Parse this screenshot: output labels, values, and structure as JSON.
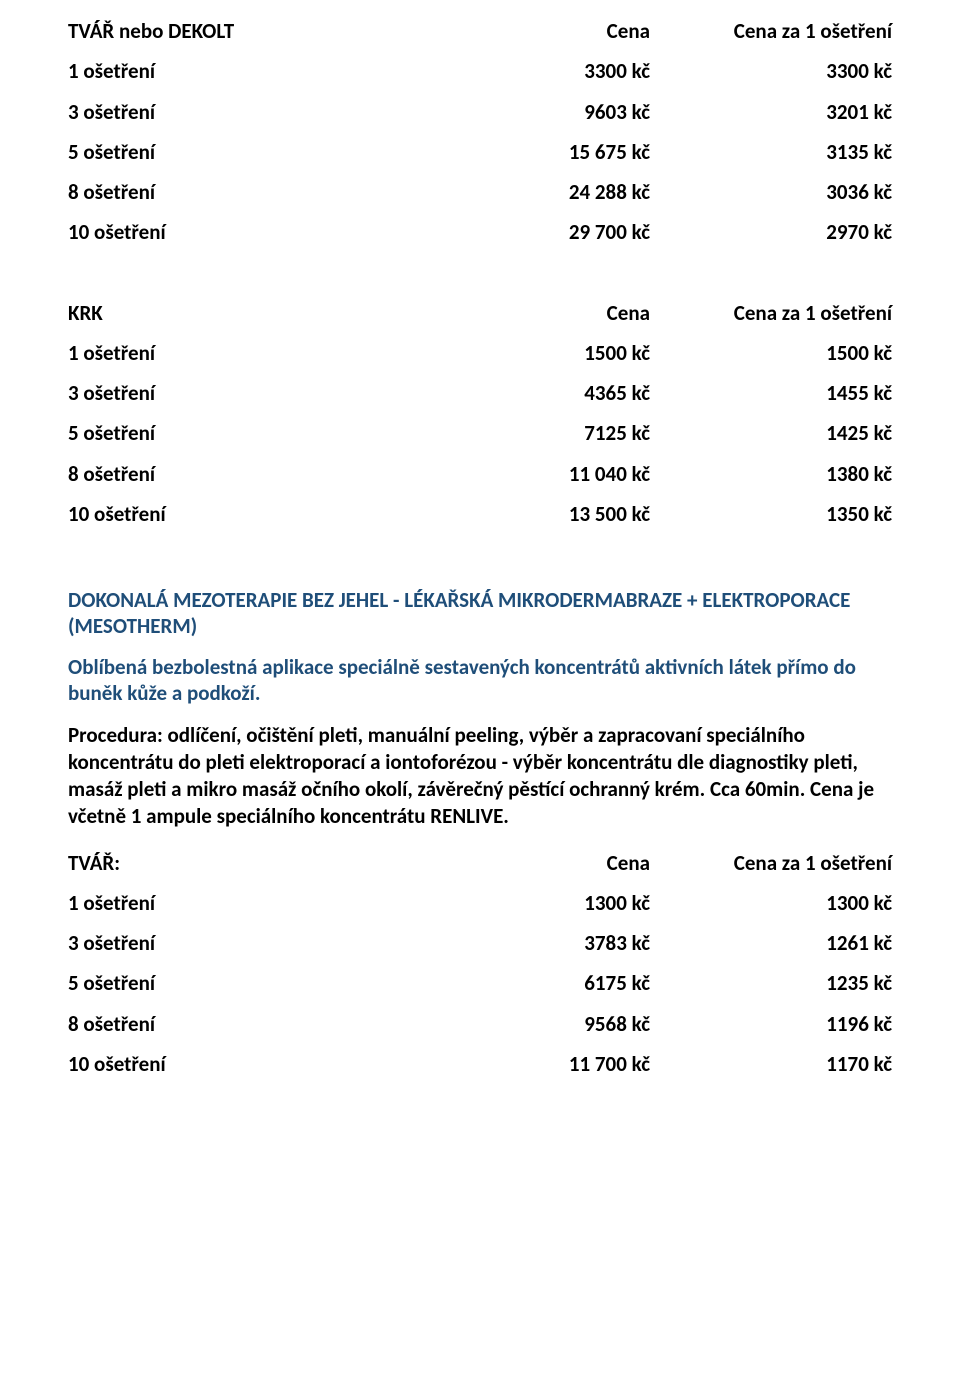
{
  "table1": {
    "header": {
      "c1": "TVÁŘ nebo DEKOLT",
      "c2": "Cena",
      "c3": "Cena za 1 ošetření"
    },
    "rows": [
      {
        "c1": "1 ošetření",
        "c2": "3300 kč",
        "c3": "3300 kč"
      },
      {
        "c1": "3 ošetření",
        "c2": "9603 kč",
        "c3": "3201 kč"
      },
      {
        "c1": "5 ošetření",
        "c2": "15 675 kč",
        "c3": "3135 kč"
      },
      {
        "c1": "8 ošetření",
        "c2": "24 288 kč",
        "c3": "3036 kč"
      },
      {
        "c1": "10 ošetření",
        "c2": "29 700 kč",
        "c3": "2970 kč"
      }
    ]
  },
  "table2": {
    "header": {
      "c1": "KRK",
      "c2": "Cena",
      "c3": "Cena za 1 ošetření"
    },
    "rows": [
      {
        "c1": "1 ošetření",
        "c2": "1500 kč",
        "c3": "1500 kč"
      },
      {
        "c1": "3 ošetření",
        "c2": "4365 kč",
        "c3": "1455 kč"
      },
      {
        "c1": "5 ošetření",
        "c2": "7125 kč",
        "c3": "1425 kč"
      },
      {
        "c1": "8 ošetření",
        "c2": "11 040 kč",
        "c3": "1380 kč"
      },
      {
        "c1": "10 ošetření",
        "c2": "13 500 kč",
        "c3": "1350 kč"
      }
    ]
  },
  "section_title": "DOKONALÁ MEZOTERAPIE BEZ JEHEL -  LÉKAŘSKÁ MIKRODERMABRAZE + ELEKTROPORACE (MESOTHERM)",
  "description": "Oblíbená bezbolestná aplikace speciálně sestavených koncentrátů aktivních látek přímo do buněk kůže a podkoží.",
  "procedure": "Procedura: odlíčení, očištění pleti, manuální peeling, výběr a zapracovaní speciálního koncentrátu do pleti elektroporací a iontoforézou - výběr koncentrátu dle diagnostiky pleti, masáž pleti a mikro masáž očního okolí, závěrečný pěstící ochranný krém. Cca 60min. Cena je včetně 1 ampule speciálního koncentrátu RENLIVE.",
  "table3": {
    "header": {
      "c1": "TVÁŘ:",
      "c2": "Cena",
      "c3": "Cena za 1 ošetření"
    },
    "rows": [
      {
        "c1": "1 ošetření",
        "c2": "1300 kč",
        "c3": "1300 kč"
      },
      {
        "c1": "3 ošetření",
        "c2": "3783 kč",
        "c3": "1261 kč"
      },
      {
        "c1": "5 ošetření",
        "c2": "6175 kč",
        "c3": "1235 kč"
      },
      {
        "c1": "8 ošetření",
        "c2": "9568 kč",
        "c3": "1196 kč"
      },
      {
        "c1": "10 ošetření",
        "c2": "11 700 kč",
        "c3": "1170 kč"
      }
    ]
  }
}
